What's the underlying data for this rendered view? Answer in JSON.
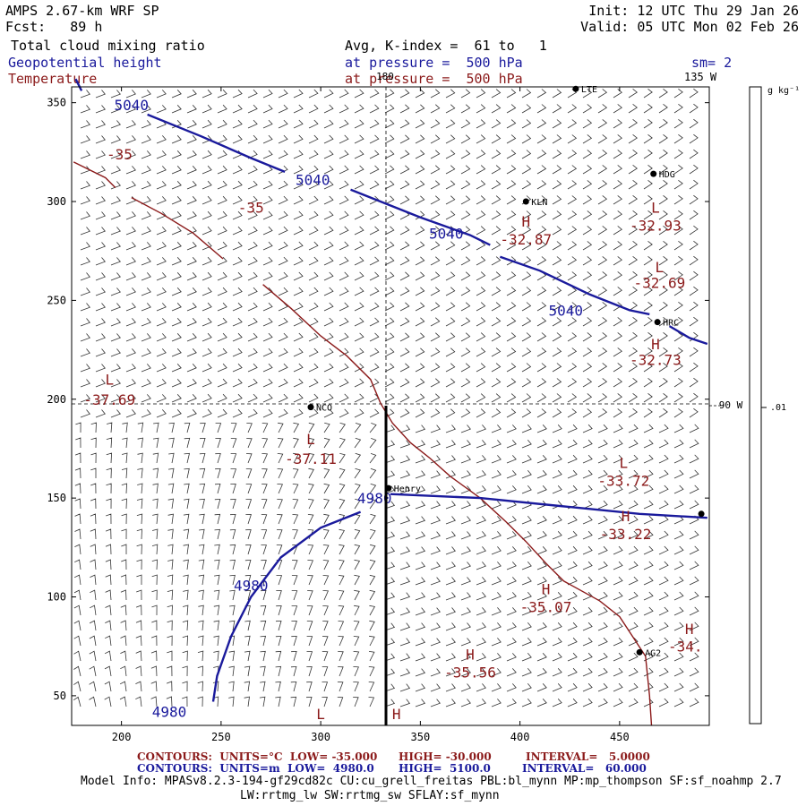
{
  "header": {
    "model": "AMPS 2.67-km WRF SP",
    "init": "Init: 12 UTC Thu 29 Jan 26",
    "fcst_label": "Fcst:",
    "fcst_value": "89 h",
    "valid": "Valid: 05 UTC Mon 02 Feb 26",
    "field1": "Total cloud mixing ratio",
    "field1_detail": "Avg, K-index =  61 to   1",
    "field2": "Geopotential height",
    "field2_detail": "at pressure =  500 hPa",
    "field2_extra": "sm= 2",
    "field3": "Temperature",
    "field3_detail": "at pressure =  500 hPa",
    "field3_extra": "135 W"
  },
  "map": {
    "meridian_top": "180",
    "meridian_right": "90 W",
    "x_ticks": [
      "200",
      "250",
      "300",
      "350",
      "400",
      "450"
    ],
    "y_ticks": [
      "350",
      "300",
      "250",
      "200",
      "150",
      "100",
      "50"
    ],
    "x_range": [
      175,
      495
    ],
    "y_range": [
      35,
      358
    ],
    "stations": [
      {
        "name": "HDG",
        "x": 467,
        "y": 314
      },
      {
        "name": "KLN",
        "x": 403,
        "y": 300
      },
      {
        "name": "HRC",
        "x": 469,
        "y": 239
      },
      {
        "name": "NCO",
        "x": 295,
        "y": 196
      },
      {
        "name": "Henry",
        "x": 334,
        "y": 155
      },
      {
        "name": "AG2",
        "x": 460,
        "y": 72
      },
      {
        "name": "LTE",
        "x": 428,
        "y": 357
      },
      {
        "name": "",
        "x": 491,
        "y": 142
      }
    ],
    "temp_labels": [
      {
        "text": "-35",
        "x": 199,
        "y": 324
      },
      {
        "text": "-35",
        "x": 265,
        "y": 297
      },
      {
        "text": "L",
        "x": 194,
        "y": 210
      },
      {
        "text": "-37.69",
        "x": 194,
        "y": 200
      },
      {
        "text": "L",
        "x": 295,
        "y": 180
      },
      {
        "text": "-37.11",
        "x": 295,
        "y": 170
      },
      {
        "text": "H",
        "x": 403,
        "y": 290
      },
      {
        "text": "-32.87",
        "x": 403,
        "y": 281
      },
      {
        "text": "L",
        "x": 468,
        "y": 297
      },
      {
        "text": "-32.93",
        "x": 468,
        "y": 288
      },
      {
        "text": "L",
        "x": 470,
        "y": 267
      },
      {
        "text": "-32.69",
        "x": 470,
        "y": 259
      },
      {
        "text": "H",
        "x": 468,
        "y": 228
      },
      {
        "text": "-32.73",
        "x": 468,
        "y": 220
      },
      {
        "text": "L",
        "x": 452,
        "y": 168
      },
      {
        "text": "-33.72",
        "x": 452,
        "y": 159
      },
      {
        "text": "H",
        "x": 453,
        "y": 141
      },
      {
        "text": "-33.22",
        "x": 453,
        "y": 132
      },
      {
        "text": "H",
        "x": 413,
        "y": 104
      },
      {
        "text": "-35.07",
        "x": 413,
        "y": 95
      },
      {
        "text": "H",
        "x": 485,
        "y": 84
      },
      {
        "text": "-34.",
        "x": 483,
        "y": 75
      },
      {
        "text": "H",
        "x": 375,
        "y": 71
      },
      {
        "text": "-35.56",
        "x": 375,
        "y": 62
      },
      {
        "text": "L",
        "x": 300,
        "y": 41
      },
      {
        "text": "H",
        "x": 338,
        "y": 41
      }
    ],
    "height_labels": [
      {
        "text": "5040",
        "x": 205,
        "y": 349
      },
      {
        "text": "5040",
        "x": 296,
        "y": 311
      },
      {
        "text": "5040",
        "x": 363,
        "y": 284
      },
      {
        "text": "5040",
        "x": 423,
        "y": 245
      },
      {
        "text": "4980",
        "x": 327,
        "y": 150
      },
      {
        "text": "4980",
        "x": 265,
        "y": 106
      },
      {
        "text": "4980",
        "x": 224,
        "y": 42
      }
    ],
    "height_contours": [
      [
        [
          177,
          362
        ],
        [
          180,
          356
        ]
      ],
      [
        [
          213,
          344
        ],
        [
          240,
          333
        ],
        [
          265,
          322
        ],
        [
          282,
          315
        ]
      ],
      [
        [
          315,
          306
        ],
        [
          350,
          292
        ],
        [
          375,
          283
        ],
        [
          385,
          278
        ]
      ],
      [
        [
          390,
          272
        ],
        [
          410,
          265
        ],
        [
          435,
          253
        ],
        [
          455,
          245
        ],
        [
          465,
          243
        ]
      ],
      [
        [
          475,
          237
        ],
        [
          485,
          231
        ],
        [
          494,
          228
        ]
      ],
      [
        [
          335,
          152
        ],
        [
          380,
          150
        ],
        [
          420,
          146
        ],
        [
          460,
          142
        ],
        [
          494,
          140
        ]
      ],
      [
        [
          246,
          47
        ],
        [
          248,
          60
        ],
        [
          255,
          80
        ],
        [
          265,
          100
        ],
        [
          280,
          120
        ],
        [
          300,
          135
        ],
        [
          320,
          143
        ]
      ]
    ],
    "temp_contours": [
      [
        [
          176,
          320
        ],
        [
          192,
          312
        ],
        [
          197,
          307
        ]
      ],
      [
        [
          205,
          302
        ],
        [
          220,
          294
        ],
        [
          236,
          284
        ],
        [
          251,
          271
        ]
      ],
      [
        [
          271,
          258
        ],
        [
          285,
          246
        ],
        [
          300,
          232
        ],
        [
          313,
          222
        ],
        [
          325,
          210
        ],
        [
          330,
          198
        ],
        [
          336,
          188
        ],
        [
          345,
          178
        ],
        [
          355,
          170
        ],
        [
          365,
          161
        ],
        [
          380,
          150
        ],
        [
          393,
          138
        ],
        [
          403,
          128
        ],
        [
          413,
          117
        ],
        [
          422,
          108
        ],
        [
          440,
          98
        ],
        [
          450,
          90
        ],
        [
          463,
          70
        ],
        [
          465,
          50
        ],
        [
          466,
          35
        ]
      ]
    ],
    "colorbar": {
      "unit": "g kg⁻¹",
      "value": ".01",
      "y_value": 195
    }
  },
  "footer": {
    "t_contours": "CONTOURS:  UNITS=°C  LOW= -35.000",
    "t_high": "HIGH= -30.000",
    "t_interval": "INTERVAL=   5.0000",
    "h_contours": "CONTOURS:  UNITS=m  LOW=  4980.0",
    "h_high": "HIGH=  5100.0",
    "h_interval": "INTERVAL=   60.000",
    "model_info": "Model Info: MPASv8.2.3-194-gf29cd82c CU:cu_grell_freitas PBL:bl_mynn MP:mp_thompson SF:sf_noahmp 2.7",
    "model_info2": "LW:rrtmg_lw SW:rrtmg_sw SFLAY:sf_mynn"
  },
  "colors": {
    "height": "#1a1a9c",
    "temp": "#8b1a1a",
    "frame": "#000000",
    "barb": "#333333"
  }
}
